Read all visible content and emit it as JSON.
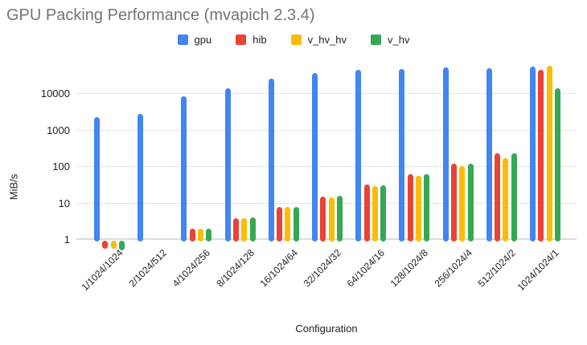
{
  "title": "GPU Packing Performance (mvapich 2.3.4)",
  "axis": {
    "x_title": "Configuration",
    "y_title": "MiB/s"
  },
  "chart_data": {
    "type": "bar",
    "title": "GPU Packing Performance (mvapich 2.3.4)",
    "xlabel": "Configuration",
    "ylabel": "MiB/s",
    "y_scale": "log",
    "y_ticks": [
      1,
      10,
      100,
      1000,
      10000
    ],
    "ylim": [
      0.45,
      60000
    ],
    "grid": true,
    "legend_position": "top",
    "categories": [
      "1/1024/1024",
      "2/1024/512",
      "4/1024/256",
      "8/1024/128",
      "16/1024/64",
      "32/1024/32",
      "64/1024/16",
      "128/1024/8",
      "256/1024/4",
      "512/1024/2",
      "1024/1024/1"
    ],
    "series": [
      {
        "name": "gpu",
        "color": "#4285F4",
        "values": [
          2200,
          2700,
          8500,
          13500,
          25000,
          36000,
          45000,
          47500,
          51000,
          48000,
          55000
        ]
      },
      {
        "name": "hib",
        "color": "#EA4335",
        "values": [
          0.6,
          null,
          1.9,
          3.8,
          7.7,
          15,
          31,
          60,
          120,
          230,
          45000
        ]
      },
      {
        "name": "v_hv_hv",
        "color": "#FBBC04",
        "values": [
          0.6,
          null,
          1.9,
          3.8,
          7.5,
          14,
          28,
          55,
          100,
          170,
          58000
        ]
      },
      {
        "name": "v_hv",
        "color": "#34A853",
        "values": [
          0.55,
          null,
          1.95,
          3.9,
          7.7,
          15.5,
          30,
          60,
          120,
          225,
          13500
        ]
      }
    ]
  }
}
